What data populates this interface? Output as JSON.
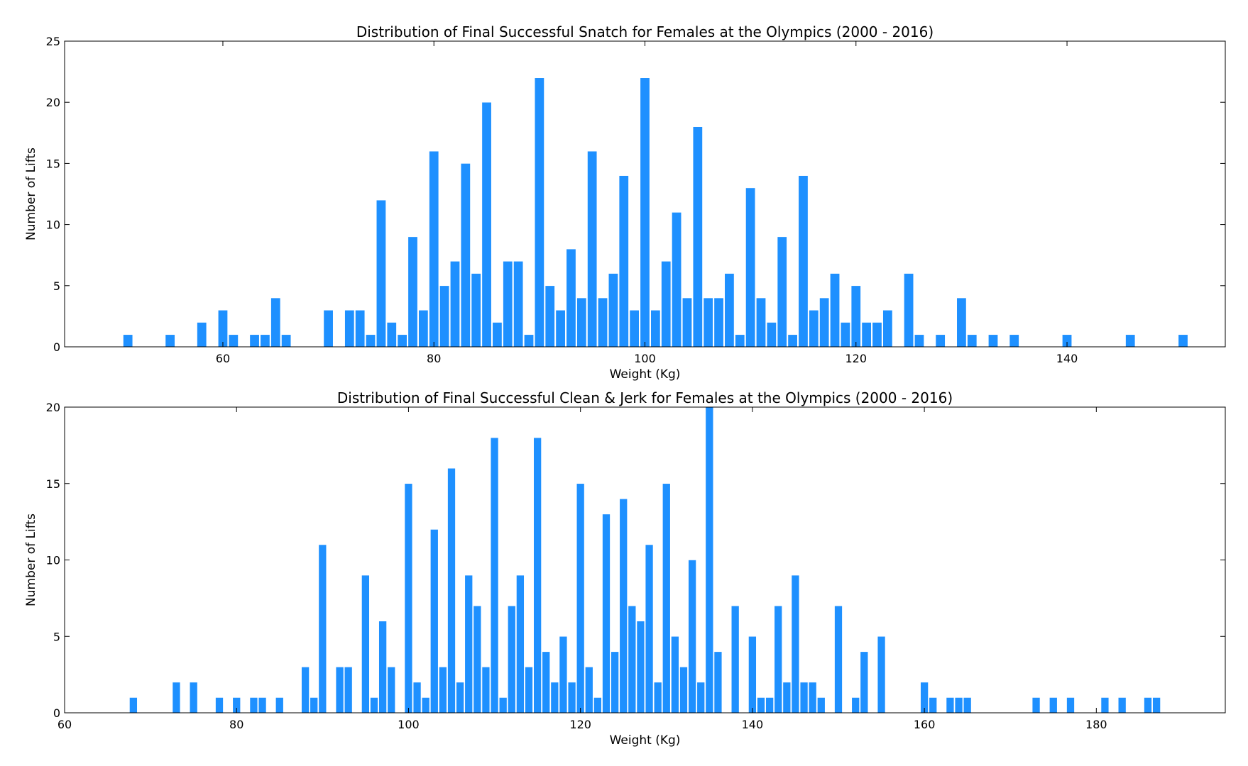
{
  "chart_data": [
    {
      "type": "bar",
      "title": "Distribution of Final Successful Snatch for Females at the Olympics (2000 - 2016)",
      "xlabel": "Weight (Kg)",
      "ylabel": "Number of Lifts",
      "xlim": [
        45,
        155
      ],
      "ylim": [
        0,
        25
      ],
      "xticks": [
        60,
        80,
        100,
        120,
        140
      ],
      "yticks": [
        0,
        5,
        10,
        15,
        20,
        25
      ],
      "bar_color": "#1e90ff",
      "grid": false,
      "x": [
        51,
        55,
        58,
        60,
        61,
        63,
        64,
        65,
        66,
        70,
        72,
        73,
        74,
        75,
        76,
        77,
        78,
        79,
        80,
        81,
        82,
        83,
        84,
        85,
        86,
        87,
        88,
        89,
        90,
        91,
        92,
        93,
        94,
        95,
        96,
        97,
        98,
        99,
        100,
        101,
        102,
        103,
        104,
        105,
        106,
        107,
        108,
        109,
        110,
        111,
        112,
        113,
        114,
        115,
        116,
        117,
        118,
        119,
        120,
        121,
        122,
        123,
        125,
        126,
        128,
        130,
        131,
        133,
        135,
        140,
        146,
        151
      ],
      "values": [
        1,
        1,
        2,
        3,
        1,
        1,
        1,
        4,
        1,
        3,
        3,
        3,
        1,
        12,
        2,
        1,
        9,
        3,
        16,
        5,
        7,
        15,
        6,
        20,
        2,
        7,
        7,
        1,
        22,
        5,
        3,
        8,
        4,
        16,
        4,
        6,
        14,
        3,
        22,
        3,
        7,
        11,
        4,
        18,
        4,
        4,
        6,
        1,
        13,
        4,
        2,
        9,
        1,
        14,
        3,
        4,
        6,
        2,
        5,
        2,
        2,
        3,
        6,
        1,
        1,
        4,
        1,
        1,
        1,
        1,
        1,
        1
      ]
    },
    {
      "type": "bar",
      "title": "Distribution of Final Successful Clean & Jerk for Females at the Olympics (2000 - 2016)",
      "xlabel": "Weight (Kg)",
      "ylabel": "Number of Lifts",
      "xlim": [
        60,
        195
      ],
      "ylim": [
        0,
        20
      ],
      "xticks": [
        60,
        80,
        100,
        120,
        140,
        160,
        180
      ],
      "yticks": [
        0,
        5,
        10,
        15,
        20
      ],
      "bar_color": "#1e90ff",
      "grid": false,
      "x": [
        68,
        73,
        75,
        78,
        80,
        82,
        83,
        85,
        88,
        89,
        90,
        92,
        93,
        95,
        96,
        97,
        98,
        100,
        101,
        102,
        103,
        104,
        105,
        106,
        107,
        108,
        109,
        110,
        111,
        112,
        113,
        114,
        115,
        116,
        117,
        118,
        119,
        120,
        121,
        122,
        123,
        124,
        125,
        126,
        127,
        128,
        129,
        130,
        131,
        132,
        133,
        134,
        135,
        136,
        138,
        140,
        141,
        142,
        143,
        144,
        145,
        146,
        147,
        148,
        150,
        152,
        153,
        155,
        160,
        161,
        163,
        164,
        165,
        173,
        175,
        177,
        181,
        183,
        186,
        187
      ],
      "values": [
        1,
        2,
        2,
        1,
        1,
        1,
        1,
        1,
        3,
        1,
        11,
        3,
        3,
        9,
        1,
        6,
        3,
        15,
        2,
        1,
        12,
        3,
        16,
        2,
        9,
        7,
        3,
        18,
        1,
        7,
        9,
        3,
        18,
        4,
        2,
        5,
        2,
        15,
        3,
        1,
        13,
        4,
        14,
        7,
        6,
        11,
        2,
        15,
        5,
        3,
        10,
        2,
        20,
        4,
        7,
        5,
        1,
        1,
        7,
        2,
        9,
        2,
        2,
        1,
        7,
        1,
        4,
        5,
        2,
        1,
        1,
        1,
        1,
        1,
        1,
        1,
        1,
        1,
        1,
        1
      ]
    }
  ]
}
